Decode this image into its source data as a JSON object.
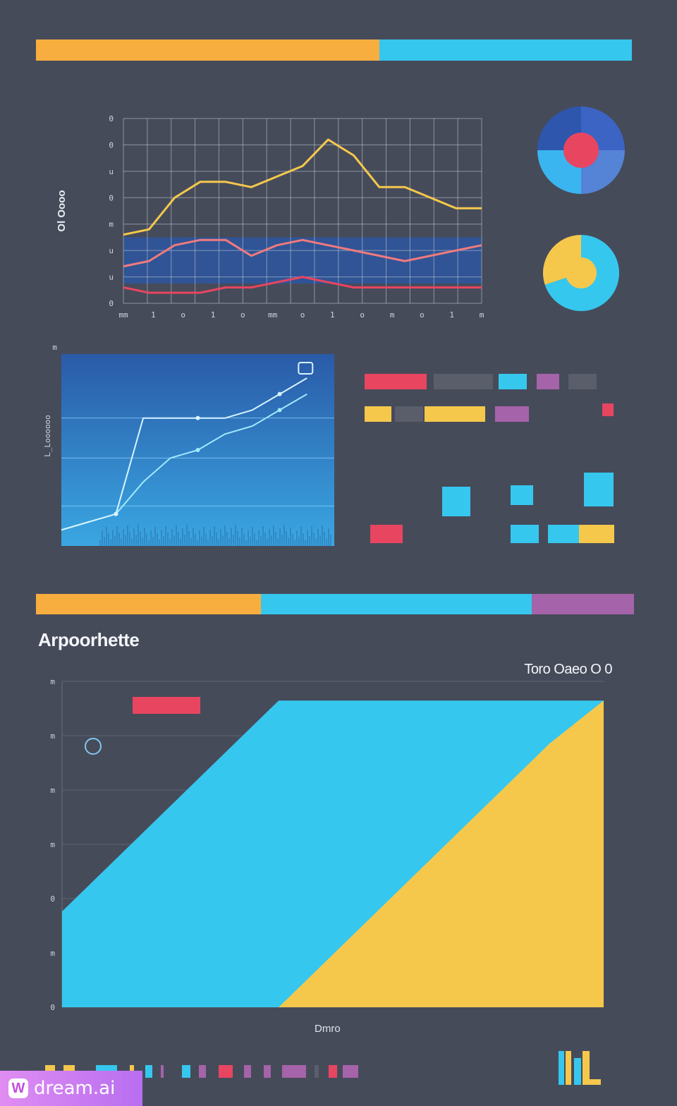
{
  "colors": {
    "background": "#464b5a",
    "orange": "#f7ae3e",
    "cyan": "#36c7ee",
    "purple": "#a563aa",
    "red": "#e84560",
    "yellow": "#f5c84c",
    "blue_panel": "#2d5fa5",
    "grey_block": "#5a5e6a"
  },
  "top_bar": [
    {
      "color": "#f7ae3e",
      "share": 0.576
    },
    {
      "color": "#36c7ee",
      "share": 0.424
    }
  ],
  "mid_bar": [
    {
      "color": "#f7ae3e",
      "share": 0.376
    },
    {
      "color": "#36c7ee",
      "share": 0.453
    },
    {
      "color": "#a563aa",
      "share": 0.171
    }
  ],
  "chart_data": [
    {
      "type": "line",
      "x": [
        0,
        1,
        2,
        3,
        4,
        5,
        6,
        7,
        8,
        9,
        10,
        11,
        12,
        13,
        14
      ],
      "series": [
        {
          "color": "#f5c84c",
          "values": [
            13,
            14,
            20,
            23,
            23,
            22,
            24,
            26,
            31,
            28,
            22,
            22,
            20,
            18,
            18
          ]
        },
        {
          "color": "#f07a7e",
          "values": [
            7,
            8,
            11,
            12,
            12,
            9,
            11,
            12,
            11,
            10,
            9,
            8,
            9,
            10,
            11
          ]
        },
        {
          "color": "#e84560",
          "values": [
            3,
            2,
            2,
            2,
            3,
            3,
            4,
            5,
            4,
            3,
            3,
            3,
            3,
            3,
            3
          ]
        }
      ],
      "ylim": [
        0,
        35
      ],
      "xlim": [
        0,
        14
      ],
      "grid": true,
      "tick_labels_x": [
        "mm",
        "1",
        "o",
        "1",
        "o",
        "mm",
        "o",
        "1",
        "o",
        "m",
        "o",
        "1",
        "m"
      ],
      "tick_labels_y": [
        "0",
        "u",
        "u",
        "m",
        "0",
        "u",
        "0",
        "0"
      ],
      "ylabel": "Ol Oooo"
    },
    {
      "type": "pie",
      "values": [
        25,
        25,
        25,
        25
      ],
      "colors": [
        "#3b64c4",
        "#5583d6",
        "#3ab5ef",
        "#2e56ad"
      ],
      "center_color": "#e84560"
    },
    {
      "type": "pie",
      "values": [
        70,
        30
      ],
      "colors": [
        "#36c7ee",
        "#f5c84c"
      ],
      "center_color": "#f5c84c"
    },
    {
      "type": "line",
      "x": [
        0,
        1,
        2,
        3,
        4,
        5,
        6,
        7,
        8,
        9
      ],
      "series": [
        {
          "color": "#9fe9ff",
          "values": [
            2,
            3,
            4,
            8,
            11,
            12,
            14,
            15,
            17,
            19
          ]
        },
        {
          "color": "#d6f4ff",
          "values": [
            2,
            3,
            4,
            16,
            16,
            16,
            16,
            17,
            19,
            21
          ]
        }
      ],
      "ylim": [
        0,
        24
      ],
      "xlim": [
        0,
        10
      ],
      "grid": true,
      "ylabel": "L_Loooooo",
      "y_top_label": "m"
    },
    {
      "type": "area",
      "x": [
        0,
        1,
        2,
        3,
        4,
        5,
        6,
        7,
        8,
        9,
        10
      ],
      "series": [
        {
          "name": "",
          "color": "#36c7ee",
          "values": [
            100,
            155,
            210,
            265,
            320,
            320,
            320,
            320,
            320,
            320,
            320
          ]
        },
        {
          "name": "",
          "color": "#f5c84c",
          "values": [
            0,
            0,
            0,
            0,
            0,
            55,
            110,
            165,
            220,
            275,
            320
          ]
        }
      ],
      "ylim": [
        0,
        340
      ],
      "xlim": [
        0,
        10
      ],
      "grid": true,
      "tick_labels_y": [
        "0",
        "m",
        "0",
        "m",
        "m",
        "m",
        "m"
      ],
      "title": "Arpoorhette",
      "legend": "Toro Oaeo O 0",
      "xlabel": "Dmro"
    }
  ],
  "blocks_panel": [
    {
      "color": "#e84560"
    },
    {
      "color": "#5a5e6a"
    },
    {
      "color": "#36c7ee"
    },
    {
      "color": "#a563aa"
    },
    {
      "color": "#5a5e6a"
    },
    {
      "color": "#f5c84c"
    },
    {
      "color": "#5a5e6a"
    },
    {
      "color": "#f5c84c"
    },
    {
      "color": "#a563aa"
    },
    {
      "color": "#e84560"
    },
    {
      "color": "#36c7ee"
    },
    {
      "color": "#36c7ee"
    },
    {
      "color": "#36c7ee"
    },
    {
      "color": "#e84560"
    },
    {
      "color": "#36c7ee"
    },
    {
      "color": "#36c7ee"
    },
    {
      "color": "#f5c84c"
    }
  ],
  "bottom_strip": [
    {
      "color": "#f5c84c"
    },
    {
      "color": "#f5c84c"
    },
    {
      "color": "#36c7ee"
    },
    {
      "color": "#f5c84c"
    },
    {
      "color": "#36c7ee"
    },
    {
      "color": "#a563aa"
    },
    {
      "color": "#36c7ee"
    },
    {
      "color": "#a563aa"
    },
    {
      "color": "#e84560"
    },
    {
      "color": "#a563aa"
    },
    {
      "color": "#a563aa"
    },
    {
      "color": "#a563aa"
    },
    {
      "color": "#5a5e6a"
    },
    {
      "color": "#e84560"
    },
    {
      "color": "#a563aa"
    }
  ],
  "watermark": {
    "logo": "W",
    "text": "dream.ai"
  }
}
